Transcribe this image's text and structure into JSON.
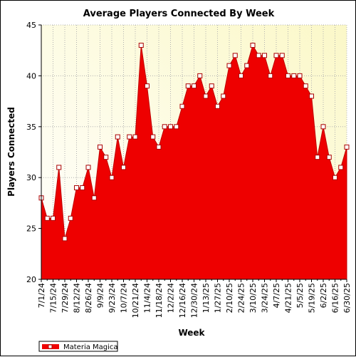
{
  "chart_data": {
    "type": "area",
    "title": "Average Players Connected By Week",
    "xlabel": "Week",
    "ylabel": "Players Connected",
    "ylim": [
      20,
      45
    ],
    "yticks": [
      20,
      25,
      30,
      35,
      40,
      45
    ],
    "grid": true,
    "legend_position": "bottom-left",
    "colors": {
      "fill": "#ee0000",
      "point_fill": "#ffffff",
      "point_stroke": "#aa0000",
      "plot_bg_top": "#fbf8c8",
      "plot_bg_bottom": "#ffffff"
    },
    "x_tick_labels": [
      "7/1/24",
      "7/15/24",
      "7/29/24",
      "8/12/24",
      "8/26/24",
      "9/9/24",
      "9/23/24",
      "10/7/24",
      "10/21/24",
      "11/4/24",
      "11/18/24",
      "12/2/24",
      "12/16/24",
      "12/30/24",
      "1/13/25",
      "1/27/25",
      "2/10/25",
      "2/24/25",
      "3/10/25",
      "3/24/25",
      "4/7/25",
      "4/21/25",
      "5/5/25",
      "5/19/25",
      "6/2/25",
      "6/16/25",
      "6/30/25"
    ],
    "series": [
      {
        "name": "Materia Magica",
        "values": [
          28,
          26,
          26,
          31,
          24,
          26,
          29,
          29,
          31,
          28,
          33,
          32,
          30,
          34,
          31,
          34,
          34,
          43,
          39,
          34,
          33,
          35,
          35,
          35,
          37,
          39,
          39,
          40,
          38,
          39,
          37,
          38,
          41,
          42,
          40,
          41,
          43,
          42,
          42,
          40,
          42,
          42,
          40,
          40,
          40,
          39,
          38,
          32,
          35,
          32,
          30,
          31,
          33
        ]
      }
    ]
  }
}
